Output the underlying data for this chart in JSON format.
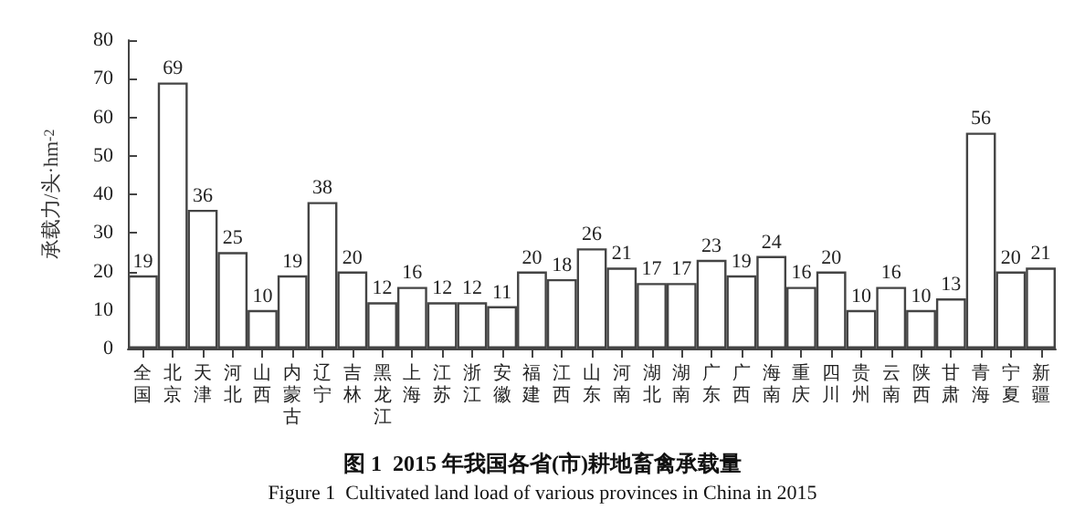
{
  "chart_data": {
    "type": "bar",
    "title": "图 1  2015 年我国各省(市)耕地畜禽承载量",
    "subtitle": "Figure 1  Cultivated land load of various provinces in China in 2015",
    "ylabel": "承载力/头·hm$^{-2}$",
    "categories": [
      "全国",
      "北京",
      "天津",
      "河北",
      "山西",
      "内蒙古",
      "辽宁",
      "吉林",
      "黑龙江",
      "上海",
      "江苏",
      "浙江",
      "安徽",
      "福建",
      "江西",
      "山东",
      "河南",
      "湖北",
      "湖南",
      "广东",
      "广西",
      "海南",
      "重庆",
      "四川",
      "贵州",
      "云南",
      "陕西",
      "甘肃",
      "青海",
      "宁夏",
      "新疆"
    ],
    "values": [
      19,
      69,
      36,
      25,
      10,
      19,
      38,
      20,
      12,
      16,
      12,
      12,
      11,
      20,
      18,
      26,
      21,
      17,
      17,
      23,
      19,
      24,
      16,
      20,
      10,
      16,
      10,
      13,
      56,
      20,
      21
    ],
    "color": "#ffffff",
    "ylim": [
      0,
      80
    ],
    "yticks": [
      0,
      10,
      20,
      30,
      40,
      50,
      60,
      70,
      80
    ],
    "grid": false,
    "data_labels": true
  }
}
